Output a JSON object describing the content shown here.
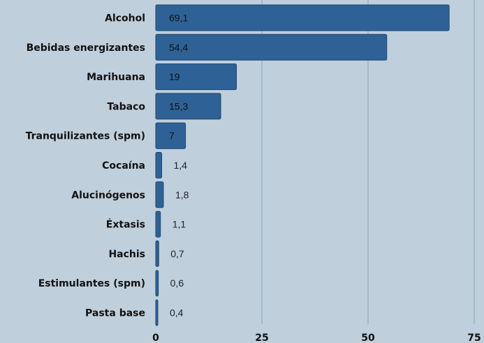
{
  "chart_data": {
    "type": "bar",
    "orientation": "horizontal",
    "title": "",
    "xlabel": "",
    "ylabel": "",
    "categories": [
      "Alcohol",
      "Bebidas energizantes",
      "Marihuana",
      "Tabaco",
      "Tranquilizantes (spm)",
      "Cocaína",
      "Alucinógenos",
      "Éxtasis",
      "Hachis",
      "Estimulantes (spm)",
      "Pasta base"
    ],
    "values": [
      69.1,
      54.4,
      19,
      15.3,
      7,
      1.4,
      1.8,
      1.1,
      0.7,
      0.6,
      0.4
    ],
    "value_labels": [
      "69,1",
      "54,4",
      "19",
      "15,3",
      "7",
      "1,4",
      "1,8",
      "1,1",
      "0,7",
      "0,6",
      "0,4"
    ],
    "xlim": [
      0,
      75
    ],
    "x_ticks": [
      0,
      25,
      50,
      75
    ],
    "x_tick_labels": [
      "0",
      "25",
      "50",
      "75"
    ],
    "grid": true,
    "legend": "none",
    "colors": {
      "background": "#bfcfdc",
      "bar": "#2e6296",
      "bar_stroke": "#1d4770",
      "grid": "#8ea4b6",
      "label_inside": "#111111",
      "label_outside": "#222222"
    }
  }
}
